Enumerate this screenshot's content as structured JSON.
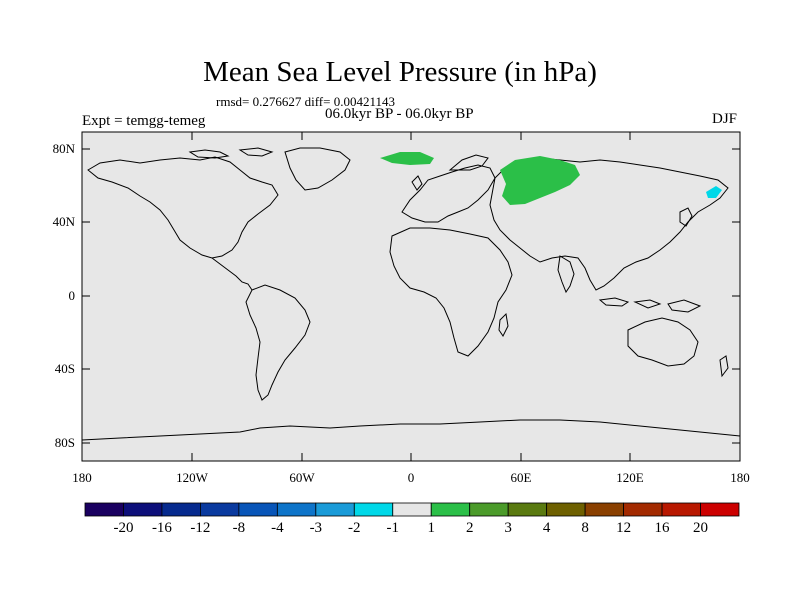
{
  "title": "Mean Sea Level Pressure (in hPa)",
  "stats": "rmsd= 0.276627 diff= 0.00421143",
  "period": "06.0kyr BP - 06.0kyr BP",
  "experiment": "Expt = temgg-temeg",
  "season": "DJF",
  "axes": {
    "lat_ticks": [
      "80N",
      "40N",
      "0",
      "40S",
      "80S"
    ],
    "lon_ticks": [
      "180",
      "120W",
      "60W",
      "0",
      "60E",
      "120E",
      "180"
    ]
  },
  "colorbar": {
    "labels": [
      "-20",
      "-16",
      "-12",
      "-8",
      "-4",
      "-3",
      "-2",
      "-1",
      "1",
      "2",
      "3",
      "4",
      "8",
      "12",
      "16",
      "20"
    ],
    "colors": [
      "#1a0060",
      "#0d0f7a",
      "#062a8e",
      "#0a3a9f",
      "#0855b8",
      "#0e74c9",
      "#1a9bd8",
      "#00d8e8",
      "#e6e6e6",
      "#2bbf48",
      "#4b9b2a",
      "#5a7a10",
      "#6e6000",
      "#8a4000",
      "#a32a00",
      "#b81800",
      "#cc0000"
    ]
  },
  "map_features": {
    "ocean_color": "#e7e7e7",
    "positive_color": "#2bbf48",
    "negative_color": "#00d8e8"
  }
}
